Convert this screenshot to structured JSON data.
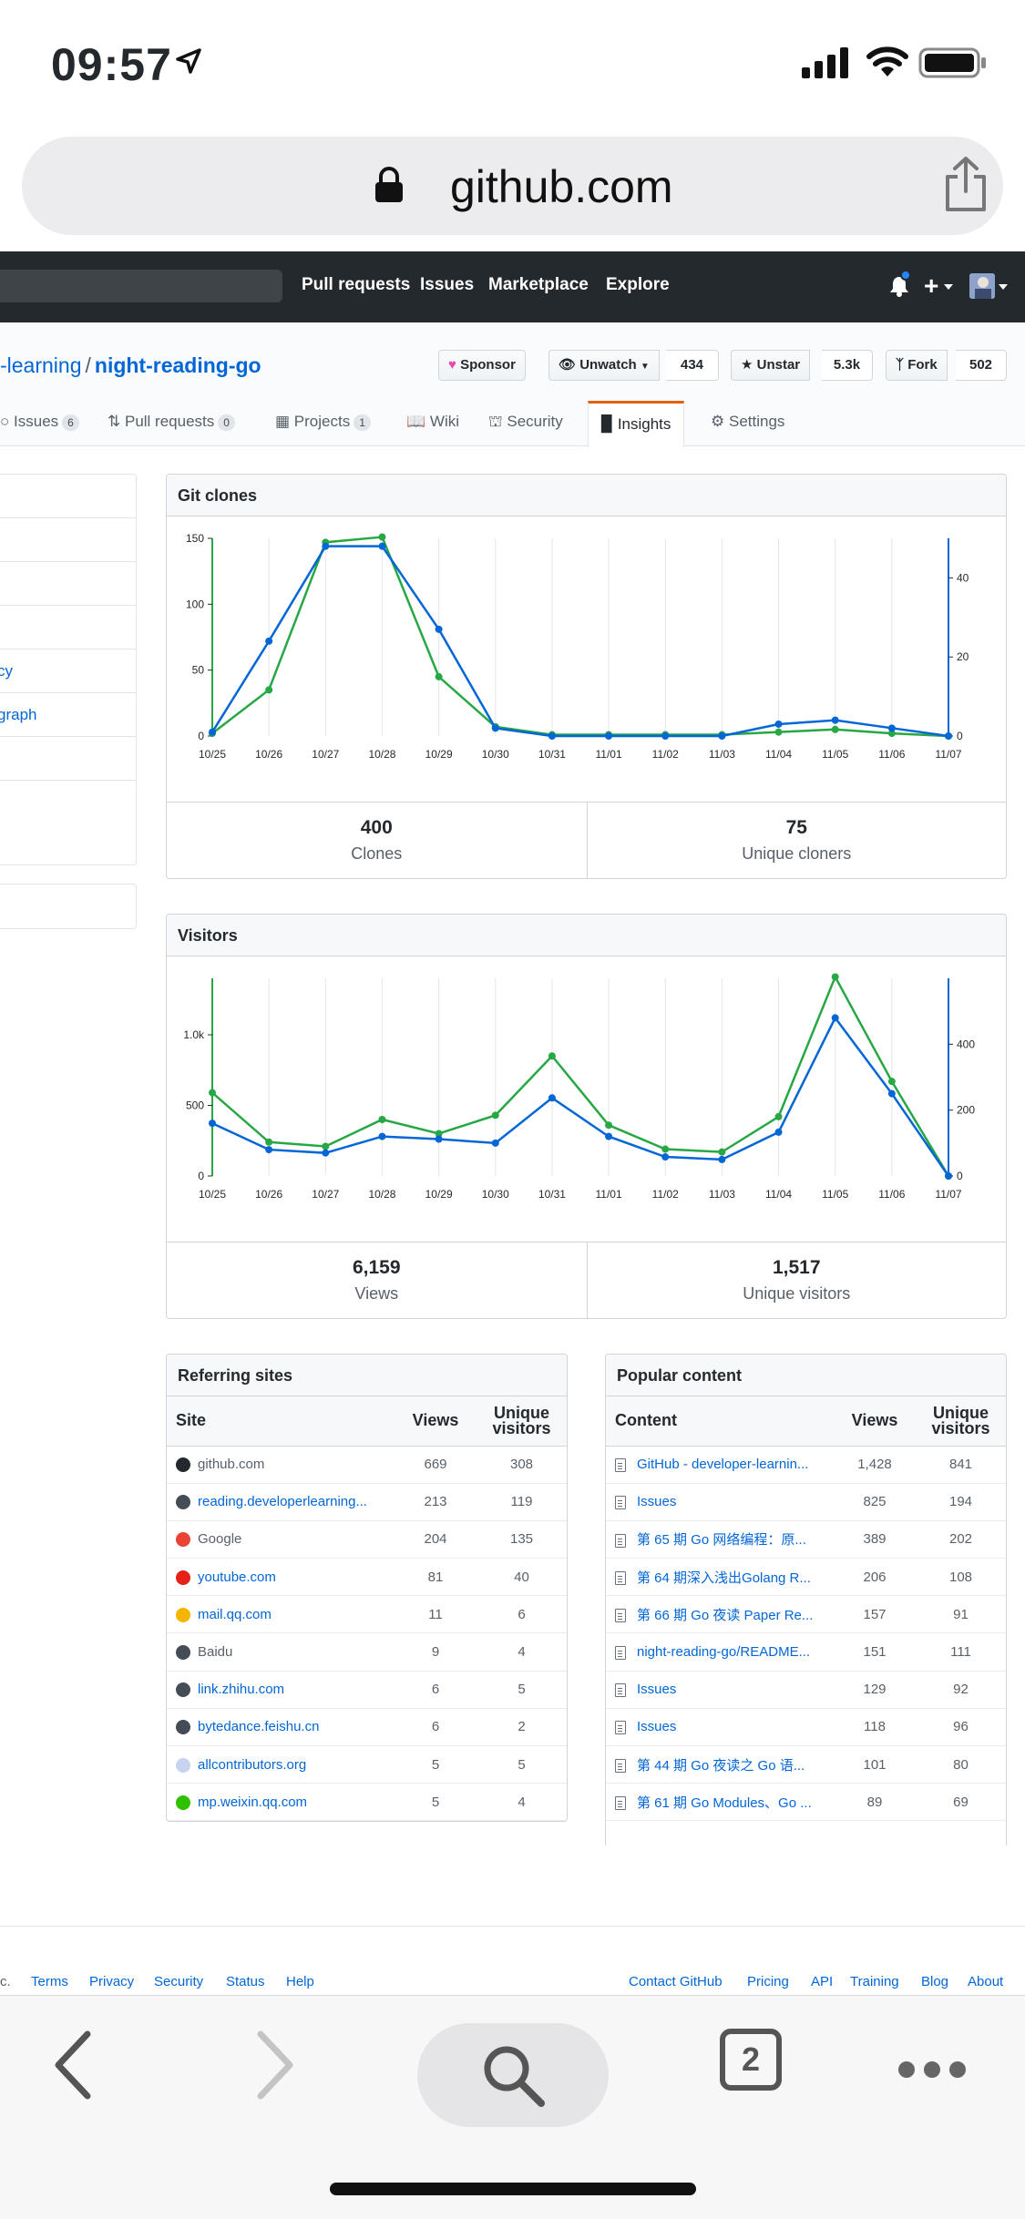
{
  "status": {
    "time": "09:57"
  },
  "browser": {
    "domain": "github.com",
    "tab_count": "2"
  },
  "header": {
    "nav": [
      "Pull requests",
      "Issues",
      "Marketplace",
      "Explore"
    ]
  },
  "repo": {
    "owner": "-learning",
    "separator": "/",
    "name": "night-reading-go",
    "sponsor_label": "Sponsor",
    "unwatch_label": "Unwatch",
    "watch_count": "434",
    "unstar_label": "Unstar",
    "star_count": "5.3k",
    "fork_label": "Fork",
    "fork_count": "502"
  },
  "tabs": [
    {
      "label": "Issues",
      "count": "6"
    },
    {
      "label": "Pull requests",
      "count": "0"
    },
    {
      "label": "Projects",
      "count": "1"
    },
    {
      "label": "Wiki"
    },
    {
      "label": "Security"
    },
    {
      "label": "Insights"
    },
    {
      "label": "Settings"
    }
  ],
  "sidemenu": {
    "items": [
      "",
      "",
      "",
      "",
      "cy",
      "graph",
      ""
    ]
  },
  "git_clones": {
    "title": "Git clones",
    "total": "400",
    "total_label": "Clones",
    "unique": "75",
    "unique_label": "Unique cloners"
  },
  "visitors": {
    "title": "Visitors",
    "total": "6,159",
    "total_label": "Views",
    "unique": "1,517",
    "unique_label": "Unique visitors"
  },
  "chart_data": [
    {
      "type": "line",
      "title": "Git clones",
      "x": [
        "10/25",
        "10/26",
        "10/27",
        "10/28",
        "10/29",
        "10/30",
        "10/31",
        "11/01",
        "11/02",
        "11/03",
        "11/04",
        "11/05",
        "11/06",
        "11/07"
      ],
      "left_axis": {
        "ticks": [
          "0",
          "50",
          "100",
          "150"
        ],
        "ylim": [
          0,
          150
        ]
      },
      "right_axis": {
        "ticks": [
          "0",
          "20",
          "40"
        ],
        "ylim": [
          0,
          50
        ]
      },
      "series": [
        {
          "name": "Clones",
          "axis": "left",
          "color": "#28a745",
          "values": [
            2,
            35,
            147,
            151,
            45,
            7,
            1,
            1,
            1,
            1,
            3,
            5,
            2,
            0
          ]
        },
        {
          "name": "Unique cloners",
          "axis": "right",
          "color": "#0366d6",
          "values": [
            1,
            24,
            48,
            48,
            27,
            2,
            0,
            0,
            0,
            0,
            3,
            4,
            2,
            0
          ]
        }
      ]
    },
    {
      "type": "line",
      "title": "Visitors",
      "x": [
        "10/25",
        "10/26",
        "10/27",
        "10/28",
        "10/29",
        "10/30",
        "10/31",
        "11/01",
        "11/02",
        "11/03",
        "11/04",
        "11/05",
        "11/06",
        "11/07"
      ],
      "left_axis": {
        "ticks": [
          "0",
          "500",
          "1.0k"
        ],
        "ylim": [
          0,
          1400
        ]
      },
      "right_axis": {
        "ticks": [
          "0",
          "200",
          "400"
        ],
        "ylim": [
          0,
          600
        ]
      },
      "series": [
        {
          "name": "Views",
          "axis": "left",
          "color": "#28a745",
          "values": [
            590,
            240,
            210,
            400,
            300,
            430,
            850,
            360,
            190,
            170,
            420,
            1410,
            670,
            0
          ]
        },
        {
          "name": "Unique visitors",
          "axis": "right",
          "color": "#0366d6",
          "values": [
            160,
            80,
            70,
            120,
            112,
            100,
            237,
            120,
            58,
            50,
            133,
            480,
            250,
            0
          ]
        }
      ]
    }
  ],
  "referring": {
    "title": "Referring sites",
    "headers": [
      "Site",
      "Views",
      "Unique visitors"
    ],
    "rows": [
      {
        "site": "github.com",
        "views": "669",
        "unique": "308",
        "icon": "github-icon",
        "color": "#24292e",
        "link": false
      },
      {
        "site": "reading.developerlearning...",
        "views": "213",
        "unique": "119",
        "icon": "globe-icon",
        "color": "#444d56",
        "link": true
      },
      {
        "site": "Google",
        "views": "204",
        "unique": "135",
        "icon": "google-icon",
        "color": "#ea4335",
        "link": false
      },
      {
        "site": "youtube.com",
        "views": "81",
        "unique": "40",
        "icon": "youtube-icon",
        "color": "#e62117",
        "link": true
      },
      {
        "site": "mail.qq.com",
        "views": "11",
        "unique": "6",
        "icon": "qqmail-icon",
        "color": "#f4b400",
        "link": true
      },
      {
        "site": "Baidu",
        "views": "9",
        "unique": "4",
        "icon": "globe-icon",
        "color": "#444d56",
        "link": false
      },
      {
        "site": "link.zhihu.com",
        "views": "6",
        "unique": "5",
        "icon": "globe-icon",
        "color": "#444d56",
        "link": true
      },
      {
        "site": "bytedance.feishu.cn",
        "views": "6",
        "unique": "2",
        "icon": "globe-icon",
        "color": "#444d56",
        "link": true
      },
      {
        "site": "allcontributors.org",
        "views": "5",
        "unique": "5",
        "icon": "allcontributors-icon",
        "color": "#c8d3f0",
        "link": true
      },
      {
        "site": "mp.weixin.qq.com",
        "views": "5",
        "unique": "4",
        "icon": "wechat-icon",
        "color": "#2dc100",
        "link": true
      }
    ]
  },
  "popular": {
    "title": "Popular content",
    "headers": [
      "Content",
      "Views",
      "Unique visitors"
    ],
    "rows": [
      {
        "content": "GitHub - developer-learnin...",
        "views": "1,428",
        "unique": "841"
      },
      {
        "content": "Issues",
        "views": "825",
        "unique": "194"
      },
      {
        "content": "第 65 期 Go 网络编程：原...",
        "views": "389",
        "unique": "202"
      },
      {
        "content": "第 64 期深入浅出Golang R...",
        "views": "206",
        "unique": "108"
      },
      {
        "content": "第 66 期 Go 夜读 Paper Re...",
        "views": "157",
        "unique": "91"
      },
      {
        "content": "night-reading-go/README...",
        "views": "151",
        "unique": "111"
      },
      {
        "content": "Issues",
        "views": "129",
        "unique": "92"
      },
      {
        "content": "Issues",
        "views": "118",
        "unique": "96"
      },
      {
        "content": "第 44 期 Go 夜读之 Go 语...",
        "views": "101",
        "unique": "80"
      },
      {
        "content": "第 61 期 Go Modules、Go ...",
        "views": "89",
        "unique": "69"
      }
    ]
  },
  "footer": {
    "left": [
      "c.",
      "Terms",
      "Privacy",
      "Security",
      "Status",
      "Help"
    ],
    "right": [
      "Contact GitHub",
      "Pricing",
      "API",
      "Training",
      "Blog",
      "About"
    ]
  }
}
